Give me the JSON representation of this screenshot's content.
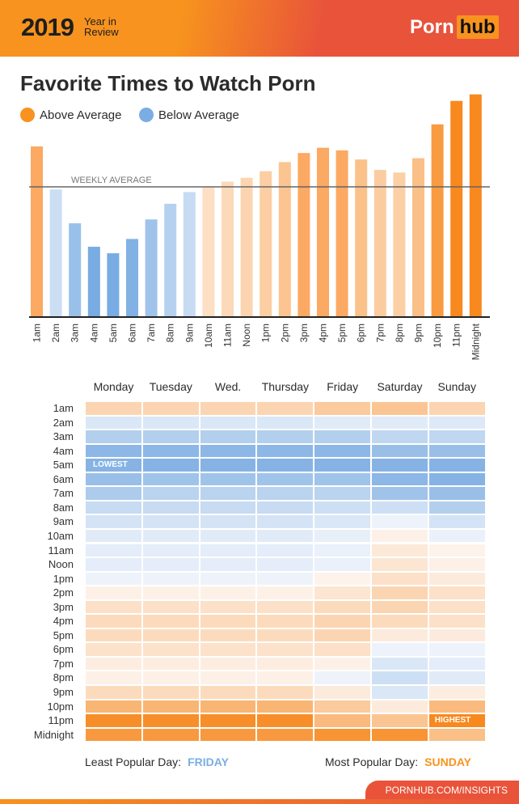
{
  "header": {
    "year": "2019",
    "year_in_review": "Year in Review",
    "logo_part1": "Porn",
    "logo_part2": "hub"
  },
  "colors": {
    "above": "#f7891f",
    "below": "#7aaee3",
    "header_orange": "#f7931e",
    "header_red": "#e8533a"
  },
  "chart_data": [
    {
      "type": "bar",
      "title": "Favorite Times to Watch Porn",
      "legend": [
        {
          "label": "Above Average",
          "color": "#f7891f"
        },
        {
          "label": "Below Average",
          "color": "#7aaee3"
        }
      ],
      "legend_placement": "top-left",
      "reference_line": {
        "label": "WEEKLY AVERAGE",
        "value": 100
      },
      "categories": [
        "1am",
        "2am",
        "3am",
        "4am",
        "5am",
        "6am",
        "7am",
        "8am",
        "9am",
        "10am",
        "11am",
        "Noon",
        "1pm",
        "2pm",
        "3pm",
        "4pm",
        "5pm",
        "6pm",
        "7pm",
        "8pm",
        "9pm",
        "10pm",
        "11pm",
        "Midnight"
      ],
      "values": [
        131,
        98,
        72,
        54,
        49,
        60,
        75,
        87,
        96,
        100,
        104,
        107,
        112,
        119,
        126,
        130,
        128,
        121,
        113,
        111,
        122,
        148,
        166,
        171
      ],
      "ylim": [
        0,
        175
      ],
      "grid": false
    },
    {
      "type": "heatmap",
      "columns": [
        "Monday",
        "Tuesday",
        "Wed.",
        "Thursday",
        "Friday",
        "Saturday",
        "Sunday"
      ],
      "rows": [
        "1am",
        "2am",
        "3am",
        "4am",
        "5am",
        "6am",
        "7am",
        "8am",
        "9am",
        "10am",
        "11am",
        "Noon",
        "1pm",
        "2pm",
        "3pm",
        "4pm",
        "5pm",
        "6pm",
        "7pm",
        "8pm",
        "9pm",
        "10pm",
        "11pm",
        "Midnight"
      ],
      "values": [
        [
          0.3,
          0.3,
          0.3,
          0.3,
          0.4,
          0.45,
          0.3
        ],
        [
          -0.2,
          -0.2,
          -0.2,
          -0.2,
          -0.15,
          -0.15,
          -0.18
        ],
        [
          -0.5,
          -0.5,
          -0.5,
          -0.5,
          -0.5,
          -0.4,
          -0.4
        ],
        [
          -0.8,
          -0.8,
          -0.8,
          -0.8,
          -0.8,
          -0.7,
          -0.7
        ],
        [
          -0.85,
          -0.85,
          -0.85,
          -0.85,
          -0.85,
          -0.85,
          -0.85
        ],
        [
          -0.7,
          -0.65,
          -0.65,
          -0.65,
          -0.65,
          -0.8,
          -0.85
        ],
        [
          -0.55,
          -0.45,
          -0.45,
          -0.45,
          -0.45,
          -0.65,
          -0.7
        ],
        [
          -0.35,
          -0.35,
          -0.35,
          -0.35,
          -0.3,
          -0.3,
          -0.5
        ],
        [
          -0.25,
          -0.25,
          -0.25,
          -0.25,
          -0.2,
          -0.05,
          -0.25
        ],
        [
          -0.15,
          -0.15,
          -0.15,
          -0.15,
          -0.1,
          0.05,
          -0.08
        ],
        [
          -0.12,
          -0.12,
          -0.12,
          -0.12,
          -0.08,
          0.12,
          0.03
        ],
        [
          -0.12,
          -0.12,
          -0.12,
          -0.12,
          -0.08,
          0.15,
          0.05
        ],
        [
          -0.05,
          -0.05,
          -0.05,
          -0.05,
          0.03,
          0.2,
          0.1
        ],
        [
          0.05,
          0.05,
          0.05,
          0.05,
          0.15,
          0.3,
          0.2
        ],
        [
          0.2,
          0.2,
          0.2,
          0.2,
          0.25,
          0.3,
          0.2
        ],
        [
          0.25,
          0.25,
          0.25,
          0.25,
          0.3,
          0.25,
          0.2
        ],
        [
          0.25,
          0.25,
          0.25,
          0.25,
          0.3,
          0.1,
          0.1
        ],
        [
          0.18,
          0.18,
          0.18,
          0.18,
          0.2,
          -0.05,
          -0.05
        ],
        [
          0.08,
          0.08,
          0.08,
          0.08,
          0.05,
          -0.2,
          -0.12
        ],
        [
          0.05,
          0.05,
          0.05,
          0.05,
          -0.05,
          -0.3,
          -0.15
        ],
        [
          0.25,
          0.25,
          0.25,
          0.25,
          0.1,
          -0.2,
          0.08
        ],
        [
          0.6,
          0.6,
          0.6,
          0.6,
          0.4,
          0.1,
          0.55
        ],
        [
          0.95,
          0.95,
          0.95,
          0.95,
          0.55,
          0.45,
          1.0
        ],
        [
          0.85,
          0.85,
          0.85,
          0.85,
          0.9,
          0.9,
          0.5
        ]
      ],
      "annotations": [
        {
          "label": "LOWEST",
          "row": "5am",
          "column": "Monday"
        },
        {
          "label": "HIGHEST",
          "row": "11pm",
          "column": "Sunday"
        }
      ]
    }
  ],
  "footer": {
    "least_label": "Least Popular Day:",
    "least_value": "FRIDAY",
    "most_label": "Most Popular Day:",
    "most_value": "SUNDAY",
    "link": "PORNHUB.COM/INSIGHTS"
  }
}
